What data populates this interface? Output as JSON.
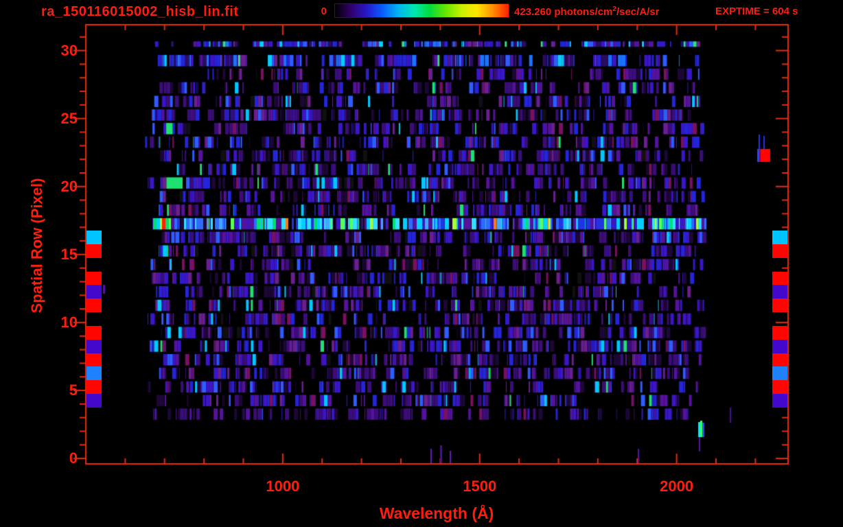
{
  "header": {
    "title": "ra_150116015002_hisb_lin.fit",
    "exptime": "EXPTIME = 604 s",
    "colorbar": {
      "min_label": "0",
      "max_label_pre": "423.260 photons/cm",
      "max_label_sup": "2",
      "max_label_post": "/sec/A/sr",
      "gradient_stops": [
        "#000000",
        "#30006a",
        "#2618c8",
        "#0a5cff",
        "#00b4f0",
        "#00e6b4",
        "#00dc3c",
        "#66e600",
        "#c8f000",
        "#ffe600",
        "#ff8c00",
        "#ff1e00"
      ]
    }
  },
  "axes": {
    "x_label": "Wavelength (Å)",
    "y_label": "Spatial Row (Pixel)",
    "text_color": "#ff1d0e",
    "axis_color": "#e82a0e"
  },
  "chart_data": {
    "type": "heatmap",
    "title": "ra_150116015002_hisb_lin.fit",
    "xlabel": "Wavelength (Å)",
    "ylabel": "Spatial Row (Pixel)",
    "x_ticks": [
      1000,
      1500,
      2000
    ],
    "x_minor_step": 100,
    "y_ticks": [
      0,
      5,
      10,
      15,
      20,
      25,
      30
    ],
    "y_minor_step": 1,
    "x_range": [
      500,
      2283
    ],
    "y_range": [
      -0.4,
      31.9
    ],
    "colorbar_min": 0,
    "colorbar_max": 423.26,
    "colorbar_units": "photons/cm2/sec/A/sr",
    "exposure_time_s": 604,
    "data_wavelength_extent": [
      670,
      2065
    ],
    "data_row_extent": [
      3,
      30
    ],
    "bright_emission_row": 17,
    "bright_top_row": 29,
    "edge_calibration_blocks": [
      {
        "row": 16,
        "color": "#00c4ff"
      },
      {
        "row": 15,
        "color": "#ff0500"
      },
      {
        "row": 13,
        "color": "#ff0500"
      },
      {
        "row": 12,
        "color": "#4408cc"
      },
      {
        "row": 11,
        "color": "#ff0500"
      },
      {
        "row": 9,
        "color": "#ff0500"
      },
      {
        "row": 8,
        "color": "#4408cc"
      },
      {
        "row": 7,
        "color": "#ff0500"
      },
      {
        "row": 6,
        "color": "#1e82ff"
      },
      {
        "row": 5,
        "color": "#ff0500"
      },
      {
        "row": 4,
        "color": "#4408cc"
      }
    ],
    "isolated_features": [
      {
        "x": 1105,
        "y": 196,
        "w": 2,
        "h": 22,
        "color": "#2233ee"
      },
      {
        "x": 1112,
        "y": 198,
        "w": 2,
        "h": 20,
        "color": "#2233ee"
      },
      {
        "x": 1103,
        "y": 217,
        "w": 3,
        "h": 19,
        "color": "#2244ff"
      },
      {
        "x": 1106,
        "y": 217,
        "w": 2,
        "h": 19,
        "color": "#7a1060"
      },
      {
        "x": 1108,
        "y": 217,
        "w": 14,
        "h": 19,
        "color": "#ff0500"
      },
      {
        "x": 150,
        "y": 415,
        "w": 3,
        "h": 13,
        "color": "#5a11aa"
      },
      {
        "x": 627,
        "y": 654,
        "w": 2,
        "h": 21,
        "color": "#6a16c0"
      },
      {
        "x": 641,
        "y": 649,
        "w": 3,
        "h": 26,
        "color": "#4a0d9a"
      },
      {
        "x": 655,
        "y": 657,
        "w": 2,
        "h": 18,
        "color": "#6a16c0"
      },
      {
        "x": 929,
        "y": 654,
        "w": 2,
        "h": 21,
        "color": "#5a11aa"
      },
      {
        "x": 1017,
        "y": 615,
        "w": 3,
        "h": 22,
        "color": "#00e5ff"
      },
      {
        "x": 1020,
        "y": 613,
        "w": 3,
        "h": 24,
        "color": "#3dff50"
      },
      {
        "x": 1023,
        "y": 616,
        "w": 3,
        "h": 21,
        "color": "#2255ff"
      },
      {
        "x": 1018,
        "y": 637,
        "w": 2,
        "h": 21,
        "color": "#5a11aa"
      },
      {
        "x": 1063,
        "y": 594,
        "w": 2,
        "h": 22,
        "color": "#4a0d9a"
      }
    ],
    "noise": {
      "seed": 150116,
      "row_profiles": {
        "30": "top_thin",
        "29": "top",
        "17": "bright",
        "3": "sparse"
      },
      "palettes": {
        "normal": [
          [
            "#000000",
            34
          ],
          [
            "#1c0736",
            10
          ],
          [
            "#3b0d78",
            14
          ],
          [
            "#55129b",
            8
          ],
          [
            "#6b1f8e",
            5
          ],
          [
            "#3a16c8",
            9
          ],
          [
            "#2424d8",
            8
          ],
          [
            "#2e5cff",
            5
          ],
          [
            "#7a1060",
            3
          ],
          [
            "#00c8ff",
            1.6
          ],
          [
            "#20e070",
            0.8
          ],
          [
            "#101010",
            1.6
          ]
        ],
        "sparse": [
          [
            "#000000",
            60
          ],
          [
            "#1c0736",
            8
          ],
          [
            "#3b0d78",
            10
          ],
          [
            "#55129b",
            5
          ],
          [
            "#3a16c8",
            6
          ],
          [
            "#2424d8",
            5
          ],
          [
            "#2e5cff",
            2
          ],
          [
            "#7a1060",
            2
          ]
        ],
        "top": [
          [
            "#000000",
            16
          ],
          [
            "#2a0d60",
            10
          ],
          [
            "#3a16c8",
            14
          ],
          [
            "#2424d8",
            14
          ],
          [
            "#2e5cff",
            10
          ],
          [
            "#1a73ff",
            6
          ],
          [
            "#00cfff",
            5
          ],
          [
            "#30e080",
            2
          ],
          [
            "#55129b",
            9
          ],
          [
            "#6b1f8e",
            4
          ]
        ],
        "bright": [
          [
            "#000000",
            5
          ],
          [
            "#3a16c8",
            9
          ],
          [
            "#2233e0",
            12
          ],
          [
            "#2e6bff",
            13
          ],
          [
            "#00cfff",
            15
          ],
          [
            "#30e0ff",
            8
          ],
          [
            "#00e070",
            7
          ],
          [
            "#5aff50",
            5
          ],
          [
            "#a8ff30",
            2
          ],
          [
            "#ff7a00",
            1.5
          ],
          [
            "#ff2000",
            1
          ],
          [
            "#55129b",
            8
          ],
          [
            "#1c0736",
            6
          ],
          [
            "#40a8ff",
            7
          ]
        ]
      }
    }
  },
  "layout_hints": {
    "grid": "off",
    "legend": "colorbar-top",
    "background": "#000000"
  }
}
